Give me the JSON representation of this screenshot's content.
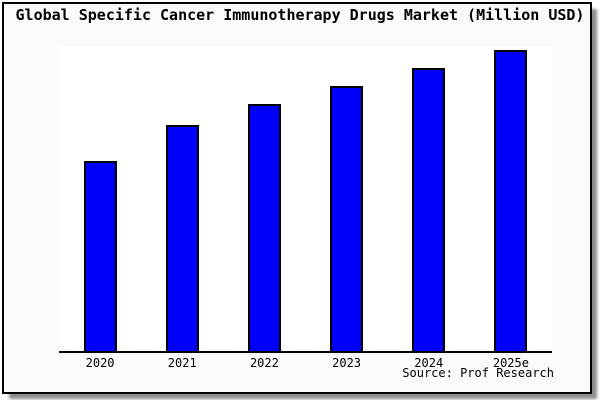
{
  "window": {
    "canvas_bg": "#ffffff",
    "panel_bg": "#fafafa",
    "panel_border_color": "#000000",
    "shadow_color": "#8a8a8a"
  },
  "chart_data": {
    "type": "bar",
    "title": "Global Specific Cancer Immunotherapy Drugs Market (Million USD)",
    "categories": [
      "2020",
      "2021",
      "2022",
      "2023",
      "2024",
      "2025e"
    ],
    "values": [
      63,
      75,
      82,
      88,
      94,
      100
    ],
    "values_estimated_relative": true,
    "ylim": [
      0,
      101
    ],
    "xlabel": "",
    "ylabel": "",
    "y_axis_labels_shown": false,
    "grid": false,
    "legend": false,
    "bar_color": "#0000fa",
    "bar_border_color": "#000000",
    "source": "Source: Prof Research"
  }
}
